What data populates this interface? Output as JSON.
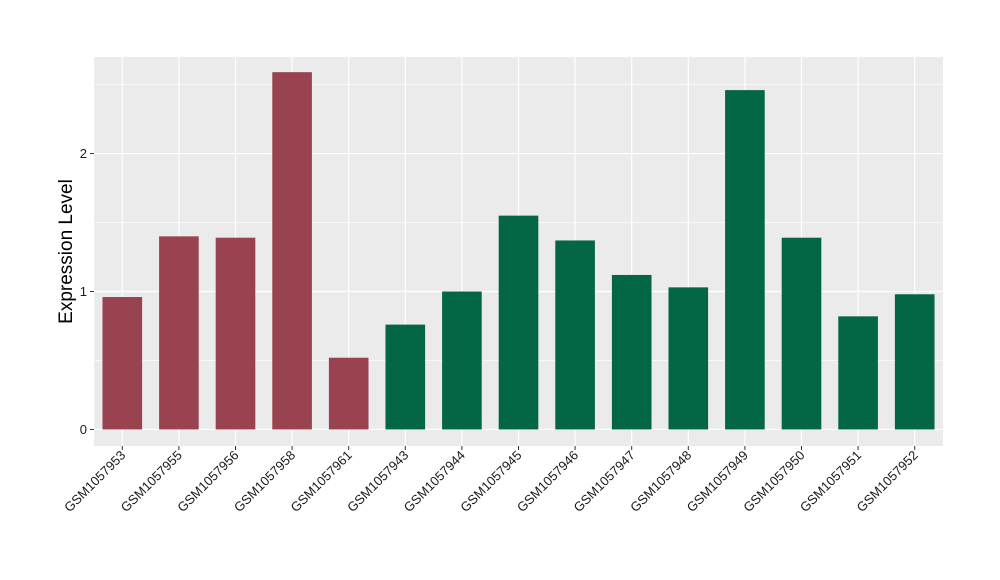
{
  "chart_data": {
    "type": "bar",
    "categories": [
      "GSM1057953",
      "GSM1057955",
      "GSM1057956",
      "GSM1057958",
      "GSM1057961",
      "GSM1057943",
      "GSM1057944",
      "GSM1057945",
      "GSM1057946",
      "GSM1057947",
      "GSM1057948",
      "GSM1057949",
      "GSM1057950",
      "GSM1057951",
      "GSM1057952"
    ],
    "values": [
      0.96,
      1.4,
      1.39,
      2.59,
      0.52,
      0.76,
      1.0,
      1.55,
      1.37,
      1.12,
      1.03,
      2.46,
      1.39,
      0.82,
      0.98
    ],
    "bar_groups": [
      0,
      0,
      0,
      0,
      0,
      1,
      1,
      1,
      1,
      1,
      1,
      1,
      1,
      1,
      1
    ],
    "group_colors": [
      "#9a4350",
      "#036745"
    ],
    "xlabel": "",
    "ylabel": "Expression Level",
    "ylim": [
      -0.12,
      2.7
    ],
    "yticks": [
      0,
      1,
      2
    ],
    "grid": true,
    "panel_background": "#ebebeb",
    "grid_color": "#ffffff"
  }
}
